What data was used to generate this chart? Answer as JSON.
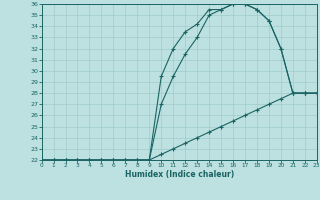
{
  "xlabel": "Humidex (Indice chaleur)",
  "xlim": [
    0,
    23
  ],
  "ylim": [
    22,
    36
  ],
  "xticks": [
    0,
    1,
    2,
    3,
    4,
    5,
    6,
    7,
    8,
    9,
    10,
    11,
    12,
    13,
    14,
    15,
    16,
    17,
    18,
    19,
    20,
    21,
    22,
    23
  ],
  "yticks": [
    22,
    23,
    24,
    25,
    26,
    27,
    28,
    29,
    30,
    31,
    32,
    33,
    34,
    35,
    36
  ],
  "bg_color": "#bde0e0",
  "line_color": "#1a6464",
  "grid_color": "#a0cccc",
  "curve1_x": [
    0,
    1,
    2,
    3,
    4,
    5,
    6,
    7,
    8,
    9,
    10,
    11,
    12,
    13,
    14,
    15,
    16,
    17,
    18,
    19,
    20,
    21,
    22,
    23
  ],
  "curve1_y": [
    22,
    22,
    22,
    22,
    22,
    22,
    22,
    22,
    22,
    22,
    29.5,
    32,
    33.5,
    34.2,
    35.5,
    35.5,
    36,
    36,
    35.5,
    34.5,
    32,
    28,
    28,
    28
  ],
  "curve2_x": [
    0,
    1,
    2,
    3,
    4,
    5,
    6,
    7,
    8,
    9,
    10,
    11,
    12,
    13,
    14,
    15,
    16,
    17,
    18,
    19,
    20,
    21,
    22,
    23
  ],
  "curve2_y": [
    22,
    22,
    22,
    22,
    22,
    22,
    22,
    22,
    22,
    22,
    27,
    29.5,
    31.5,
    33.0,
    35.0,
    35.5,
    36,
    36,
    35.5,
    34.5,
    32,
    28,
    28,
    28
  ],
  "curve3_x": [
    0,
    1,
    2,
    3,
    4,
    5,
    6,
    7,
    8,
    9,
    10,
    11,
    12,
    13,
    14,
    15,
    16,
    17,
    18,
    19,
    20,
    21,
    22,
    23
  ],
  "curve3_y": [
    22,
    22,
    22,
    22,
    22,
    22,
    22,
    22,
    22,
    22,
    22.5,
    23,
    23.5,
    24,
    24.5,
    25,
    25.5,
    26,
    26.5,
    27,
    27.5,
    28,
    28,
    28
  ]
}
